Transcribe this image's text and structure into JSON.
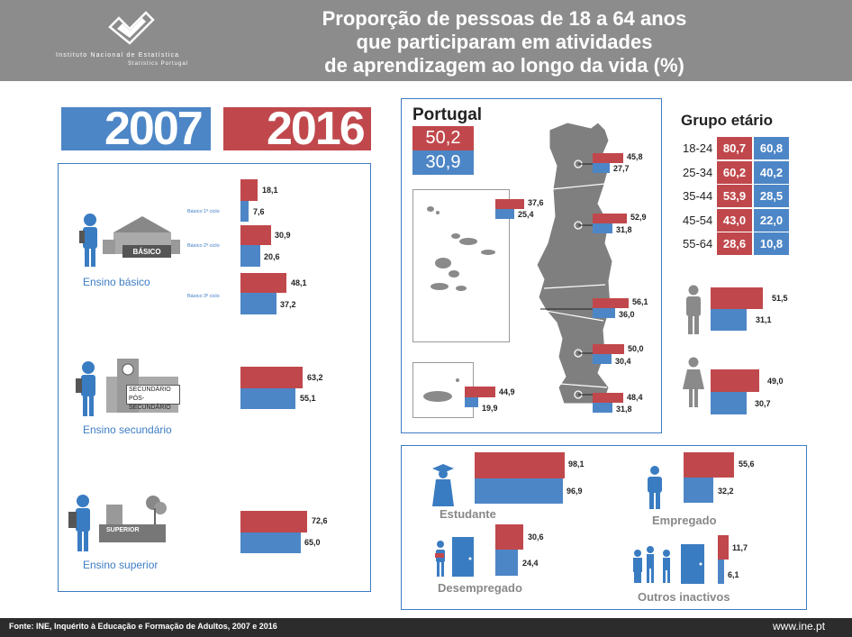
{
  "header": {
    "title_line1": "Proporção de pessoas de 18 a 64 anos",
    "title_line2": "que participaram em atividades",
    "title_line3": "de aprendizagem ao longo da vida (%)",
    "org_name": "Instituto Nacional de Estatística",
    "org_sub": "Statistics Portugal"
  },
  "years": {
    "y2007": "2007",
    "y2016": "2016"
  },
  "colors": {
    "y2016": "#c0484c",
    "y2007": "#4d86c6",
    "header": "#8c8c8c",
    "border": "#3d7cc4"
  },
  "education": {
    "basico_label": "Ensino básico",
    "basico_sign": "BÁSICO",
    "secundario_label": "Ensino secundário",
    "secundario_sign1": "SECUNDÁRIO",
    "secundario_sign2": "PÓS-SECUNDÁRIO",
    "superior_label": "Ensino superior",
    "superior_sign": "SUPERIOR",
    "ciclo1": {
      "label": "Básico 1º ciclo",
      "v2016": "18,1",
      "v2007": "7,6"
    },
    "ciclo2": {
      "label": "Básico 2º ciclo",
      "v2016": "30,9",
      "v2007": "20,6"
    },
    "ciclo3": {
      "label": "Básico 3º ciclo",
      "v2016": "48,1",
      "v2007": "37,2"
    },
    "secundario": {
      "v2016": "63,2",
      "v2007": "55,1"
    },
    "superior": {
      "v2016": "72,6",
      "v2007": "65,0"
    }
  },
  "portugal": {
    "label": "Portugal",
    "v2016": "50,2",
    "v2007": "30,9",
    "regions": {
      "acores": {
        "v2016": "37,6",
        "v2007": "25,4"
      },
      "madeira": {
        "v2016": "44,9",
        "v2007": "19,9"
      },
      "norte": {
        "v2016": "45,8",
        "v2007": "27,7"
      },
      "centro": {
        "v2016": "52,9",
        "v2007": "31,8"
      },
      "lisboa": {
        "v2016": "56,1",
        "v2007": "36,0"
      },
      "alentejo": {
        "v2016": "50,0",
        "v2007": "30,4"
      },
      "algarve": {
        "v2016": "48,4",
        "v2007": "31,8"
      }
    }
  },
  "age": {
    "title": "Grupo etário",
    "rows": [
      {
        "label": "18-24",
        "v2016": "80,7",
        "v2007": "60,8"
      },
      {
        "label": "25-34",
        "v2016": "60,2",
        "v2007": "40,2"
      },
      {
        "label": "35-44",
        "v2016": "53,9",
        "v2007": "28,5"
      },
      {
        "label": "45-54",
        "v2016": "43,0",
        "v2007": "22,0"
      },
      {
        "label": "55-64",
        "v2016": "28,6",
        "v2007": "10,8"
      }
    ]
  },
  "sex": {
    "male": {
      "v2016": "51,5",
      "v2007": "31,1"
    },
    "female": {
      "v2016": "49,0",
      "v2007": "30,7"
    }
  },
  "employment": {
    "estudante": {
      "label": "Estudante",
      "v2016": "98,1",
      "v2007": "96,9"
    },
    "empregado": {
      "label": "Empregado",
      "v2016": "55,6",
      "v2007": "32,2"
    },
    "desempregado": {
      "label": "Desempregado",
      "v2016": "30,6",
      "v2007": "24,4"
    },
    "inactivos": {
      "label": "Outros inactivos",
      "v2016": "11,7",
      "v2007": "6,1"
    }
  },
  "footer": {
    "source": "Fonte: INE, Inquérito à Educação e Formação de Adultos, 2007 e 2016",
    "url": "www.ine.pt"
  }
}
